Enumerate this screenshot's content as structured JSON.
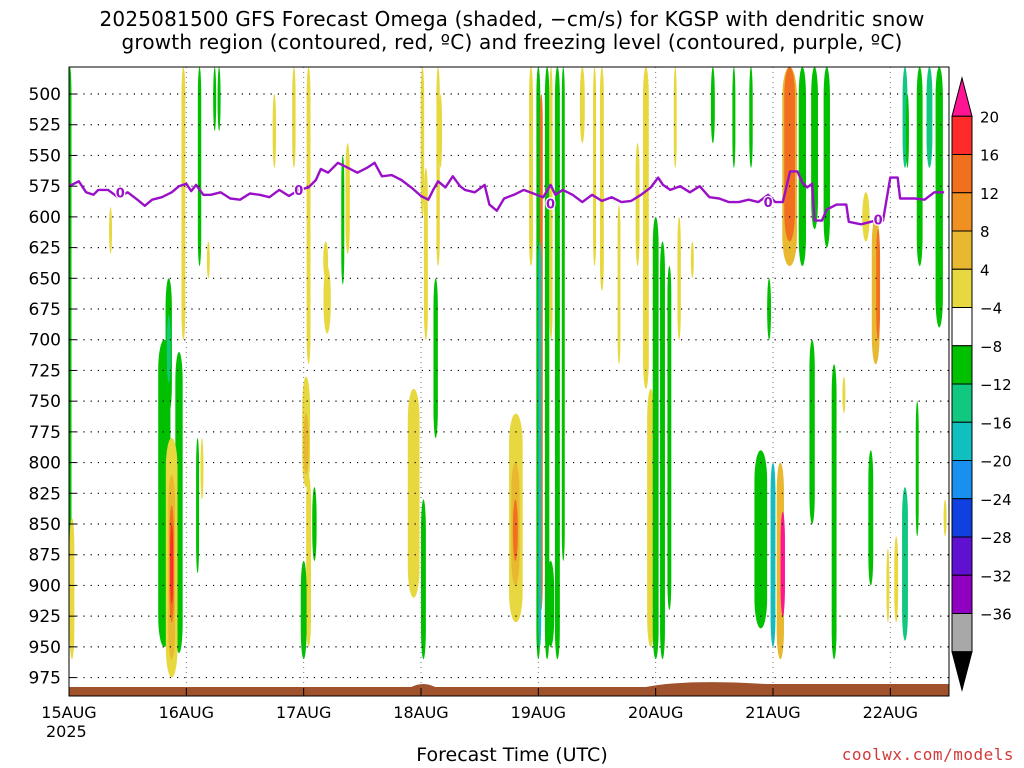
{
  "title": {
    "line1": "2025081500 GFS Forecast Omega (shaded, −cm/s) for KGSP with dendritic snow",
    "line2": "growth region (contoured, red, ºC) and freezing level (contoured, purple, ºC)"
  },
  "credit": "coolwx.com/models",
  "chart_data": {
    "type": "heatmap",
    "xlabel": "Forecast Time (UTC)",
    "ylabel": "",
    "x_ticks": [
      {
        "label": "15AUG",
        "hour": 0
      },
      {
        "label": "16AUG",
        "hour": 24
      },
      {
        "label": "17AUG",
        "hour": 48
      },
      {
        "label": "18AUG",
        "hour": 72
      },
      {
        "label": "19AUG",
        "hour": 96
      },
      {
        "label": "20AUG",
        "hour": 120
      },
      {
        "label": "21AUG",
        "hour": 144
      },
      {
        "label": "22AUG",
        "hour": 168
      }
    ],
    "x_year": "2025",
    "xlim_hours": [
      0,
      180
    ],
    "y_ticks": [
      500,
      525,
      550,
      575,
      600,
      625,
      650,
      675,
      700,
      725,
      750,
      775,
      800,
      825,
      850,
      875,
      900,
      925,
      950,
      975
    ],
    "ylim_hpa": [
      478,
      990
    ],
    "grid": true,
    "colorbar": {
      "labels": [
        "20",
        "16",
        "12",
        "8",
        "4",
        "−4",
        "−8",
        "−12",
        "−16",
        "−20",
        "−24",
        "−28",
        "−32",
        "−36"
      ],
      "colors": [
        "#ff1493",
        "#ff2a2a",
        "#f07020",
        "#f09020",
        "#e8b830",
        "#e8d840",
        "#ffffff",
        "#00c000",
        "#10c880",
        "#10c0c0",
        "#1890f0",
        "#1040e0",
        "#6010d0",
        "#9000c0",
        "#a8a8a8",
        "#000000"
      ]
    },
    "freezing_level": {
      "label": "0",
      "points": [
        [
          0,
          575
        ],
        [
          2,
          571
        ],
        [
          3.5,
          580
        ],
        [
          5,
          582
        ],
        [
          6,
          578
        ],
        [
          8,
          578
        ],
        [
          10,
          584
        ],
        [
          12,
          580
        ],
        [
          14,
          586
        ],
        [
          15.5,
          591
        ],
        [
          17,
          586
        ],
        [
          19,
          584
        ],
        [
          21,
          580
        ],
        [
          22.5,
          575
        ],
        [
          24,
          573
        ],
        [
          25,
          579
        ],
        [
          26,
          574
        ],
        [
          27.5,
          582
        ],
        [
          29,
          582
        ],
        [
          31,
          580
        ],
        [
          33,
          585
        ],
        [
          35,
          586
        ],
        [
          37,
          581
        ],
        [
          39,
          582
        ],
        [
          41,
          584
        ],
        [
          43,
          578
        ],
        [
          45,
          583
        ],
        [
          47,
          578
        ],
        [
          49,
          576
        ],
        [
          50.5,
          570
        ],
        [
          51.5,
          561
        ],
        [
          53,
          564
        ],
        [
          55,
          556
        ],
        [
          57,
          560
        ],
        [
          59,
          564
        ],
        [
          61,
          560
        ],
        [
          62.5,
          556
        ],
        [
          64,
          567
        ],
        [
          66,
          566
        ],
        [
          68,
          570
        ],
        [
          70,
          576
        ],
        [
          72,
          583
        ],
        [
          73.5,
          586
        ],
        [
          74.5,
          578
        ],
        [
          75.5,
          571
        ],
        [
          77,
          576
        ],
        [
          78.5,
          567
        ],
        [
          80,
          575
        ],
        [
          81,
          578
        ],
        [
          83,
          580
        ],
        [
          85,
          574
        ],
        [
          86,
          590
        ],
        [
          87.5,
          595
        ],
        [
          89,
          585
        ],
        [
          91,
          582
        ],
        [
          93,
          578
        ],
        [
          95,
          581
        ],
        [
          97,
          584
        ],
        [
          98.5,
          574
        ],
        [
          99.5,
          582
        ],
        [
          101,
          578
        ],
        [
          103,
          582
        ],
        [
          105,
          588
        ],
        [
          107,
          582
        ],
        [
          109,
          587
        ],
        [
          111,
          584
        ],
        [
          113,
          588
        ],
        [
          115,
          587
        ],
        [
          117,
          582
        ],
        [
          119,
          576
        ],
        [
          120.5,
          568
        ],
        [
          121.5,
          574
        ],
        [
          123,
          578
        ],
        [
          125,
          575
        ],
        [
          127,
          580
        ],
        [
          129,
          575
        ],
        [
          131,
          584
        ],
        [
          133,
          585
        ],
        [
          135,
          588
        ],
        [
          137,
          588
        ],
        [
          139,
          586
        ],
        [
          141,
          588
        ],
        [
          143,
          582
        ],
        [
          144.5,
          588
        ],
        [
          146,
          588
        ],
        [
          147.5,
          563
        ],
        [
          149,
          563
        ],
        [
          150,
          572
        ],
        [
          151,
          576
        ],
        [
          152,
          573
        ],
        [
          152.5,
          603
        ],
        [
          154,
          603
        ],
        [
          155,
          594
        ],
        [
          157,
          590
        ],
        [
          159,
          590
        ],
        [
          159.5,
          604
        ],
        [
          162,
          606
        ],
        [
          165,
          603
        ],
        [
          166.5,
          603
        ],
        [
          168,
          568
        ],
        [
          169.5,
          568
        ],
        [
          170,
          585
        ],
        [
          173,
          585
        ],
        [
          175,
          586
        ],
        [
          177,
          580
        ],
        [
          179,
          580
        ]
      ]
    }
  }
}
